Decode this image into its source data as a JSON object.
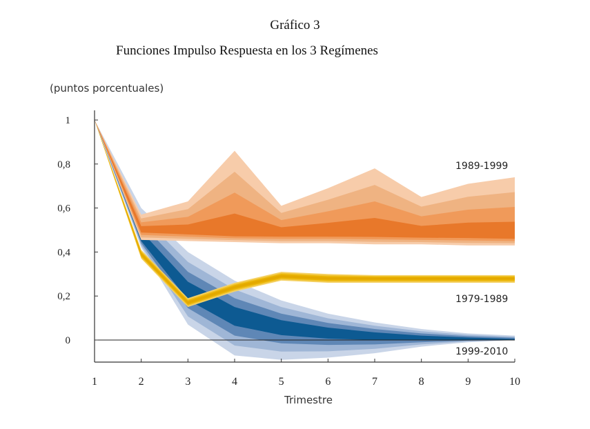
{
  "chart_data": {
    "type": "area",
    "title": "Gráfico 3",
    "subtitle": "Funciones Impulso Respuesta en los 3 Regímenes",
    "ylabel": "(puntos porcentuales)",
    "xlabel": "Trimestre",
    "x": [
      1,
      2,
      3,
      4,
      5,
      6,
      7,
      8,
      9,
      10
    ],
    "x_ticks": [
      "1",
      "2",
      "3",
      "4",
      "5",
      "6",
      "7",
      "8",
      "9",
      "10"
    ],
    "y_ticks": [
      {
        "value": 0,
        "label": "0"
      },
      {
        "value": 0.2,
        "label": "0,2"
      },
      {
        "value": 0.4,
        "label": "0,4"
      },
      {
        "value": 0.6,
        "label": "0,6"
      },
      {
        "value": 0.8,
        "label": "0,8"
      },
      {
        "value": 1,
        "label": "1"
      }
    ],
    "ylim": [
      -0.1,
      1.05
    ],
    "xlim": [
      1,
      10
    ],
    "grid": false,
    "series": [
      {
        "name": "1999-2010",
        "colors": [
          "#c9d5e8",
          "#9fb6d6",
          "#5f87b6",
          "#0d5a92"
        ],
        "median": [
          1,
          0.46,
          0.22,
          0.11,
          0.06,
          0.035,
          0.02,
          0.01,
          0.005,
          0.0
        ],
        "upper": [
          1,
          0.6,
          0.4,
          0.27,
          0.18,
          0.12,
          0.08,
          0.05,
          0.03,
          0.02
        ],
        "lower": [
          1,
          0.42,
          0.07,
          -0.07,
          -0.09,
          -0.08,
          -0.06,
          -0.03,
          -0.01,
          0.0
        ]
      },
      {
        "name": "1989-1999",
        "colors": [
          "#f7ccaa",
          "#efb382",
          "#f09a5a",
          "#e8782a"
        ],
        "median": [
          1,
          0.5,
          0.49,
          0.48,
          0.48,
          0.48,
          0.48,
          0.475,
          0.475,
          0.47
        ],
        "upper": [
          1,
          0.57,
          0.63,
          0.86,
          0.61,
          0.69,
          0.78,
          0.65,
          0.71,
          0.74
        ],
        "lower": [
          1,
          0.455,
          0.45,
          0.445,
          0.44,
          0.44,
          0.435,
          0.435,
          0.43,
          0.43
        ]
      },
      {
        "name": "1979-1989",
        "colors": [
          "#f5d36a",
          "#f0c230",
          "#e9b300",
          "#e3a800"
        ],
        "median": [
          1,
          0.39,
          0.17,
          0.24,
          0.29,
          0.28,
          0.28,
          0.28,
          0.28,
          0.28
        ],
        "upper": [
          1,
          0.41,
          0.19,
          0.26,
          0.31,
          0.3,
          0.295,
          0.295,
          0.295,
          0.295
        ],
        "lower": [
          1,
          0.37,
          0.15,
          0.22,
          0.27,
          0.26,
          0.26,
          0.26,
          0.26,
          0.26
        ]
      }
    ]
  }
}
